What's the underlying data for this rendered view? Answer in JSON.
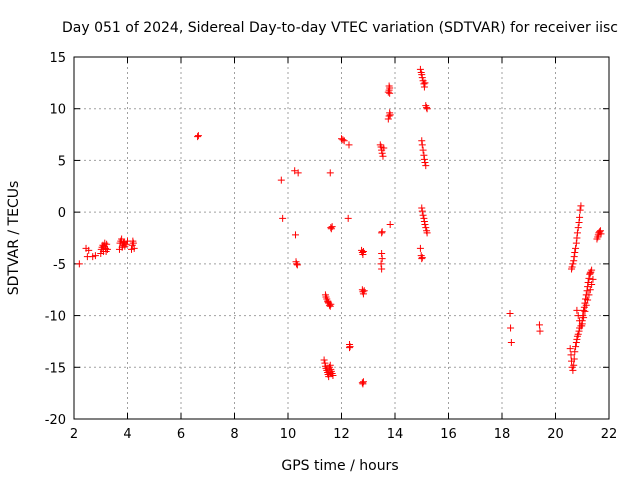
{
  "chart_data": {
    "type": "scatter",
    "title": "Day 051 of 2024, Sidereal Day-to-day VTEC variation (SDTVAR) for receiver iisc",
    "xlabel": "GPS time / hours",
    "ylabel": "SDTVAR / TECUs",
    "xlim": [
      2,
      22
    ],
    "ylim": [
      -20,
      15
    ],
    "xticks": [
      2,
      4,
      6,
      8,
      10,
      12,
      14,
      16,
      18,
      20,
      22
    ],
    "yticks": [
      -20,
      -15,
      -10,
      -5,
      0,
      5,
      10,
      15
    ],
    "xtick_labels": [
      "2",
      "4",
      "6",
      "8",
      "10",
      "12",
      "14",
      "16",
      "18",
      "20",
      "22"
    ],
    "ytick_labels": [
      "-20",
      "-15",
      "-10",
      "-5",
      "0",
      "5",
      "10",
      "15"
    ],
    "grid": true,
    "marker": "plus",
    "color": "#ff0000",
    "series": [
      {
        "name": "SDTVAR",
        "x": [
          2.2,
          2.45,
          2.5,
          2.55,
          2.7,
          2.8,
          3.0,
          3.02,
          3.05,
          3.08,
          3.1,
          3.12,
          3.15,
          3.18,
          3.2,
          3.22,
          3.25,
          3.7,
          3.72,
          3.75,
          3.78,
          3.8,
          3.82,
          3.85,
          3.88,
          3.9,
          3.95,
          4.0,
          4.15,
          4.18,
          4.2,
          4.22,
          4.25,
          6.62,
          6.65,
          9.75,
          9.8,
          10.25,
          10.28,
          10.3,
          10.32,
          10.35,
          10.38,
          11.35,
          11.38,
          11.4,
          11.42,
          11.45,
          11.48,
          11.5,
          11.52,
          11.55,
          11.58,
          11.6,
          11.62,
          11.65,
          11.68,
          11.4,
          11.42,
          11.45,
          11.48,
          11.5,
          11.52,
          11.55,
          11.58,
          11.6,
          11.6,
          11.62,
          11.65,
          11.58,
          12.0,
          12.05,
          12.1,
          12.25,
          12.28,
          12.3,
          12.3,
          12.32,
          12.75,
          12.78,
          12.8,
          12.82,
          12.78,
          12.8,
          12.82,
          12.85,
          12.78,
          12.8,
          12.82,
          13.45,
          13.48,
          13.5,
          13.52,
          13.55,
          13.58,
          13.5,
          13.5,
          13.52,
          13.48,
          13.5,
          13.52,
          13.75,
          13.78,
          13.8,
          13.82,
          13.75,
          13.78,
          13.8,
          13.78,
          13.8,
          13.82,
          14.95,
          14.98,
          15.0,
          15.02,
          15.05,
          15.08,
          15.1,
          15.12,
          15.15,
          15.18,
          15.2,
          15.0,
          15.02,
          15.05,
          15.08,
          15.1,
          15.12,
          15.15,
          15.0,
          15.02,
          15.05,
          15.08,
          15.1,
          15.12,
          15.15,
          15.18,
          15.2,
          14.95,
          14.98,
          15.0,
          15.02,
          18.3,
          18.32,
          18.35,
          19.4,
          19.42,
          20.55,
          20.58,
          20.6,
          20.62,
          20.65,
          20.68,
          20.7,
          20.72,
          20.75,
          20.78,
          20.8,
          20.82,
          20.85,
          20.88,
          20.9,
          20.6,
          20.62,
          20.65,
          20.68,
          20.7,
          20.72,
          20.75,
          20.78,
          20.8,
          20.82,
          20.85,
          20.88,
          20.9,
          20.92,
          20.95,
          20.98,
          21.0,
          21.02,
          21.05,
          21.08,
          21.1,
          21.12,
          21.15,
          21.18,
          21.2,
          21.22,
          21.25,
          21.28,
          21.3,
          21.32,
          21.35,
          20.8,
          20.85,
          20.9,
          20.95,
          21.0,
          21.05,
          21.1,
          21.15,
          21.2,
          21.25,
          21.3,
          21.35,
          21.4,
          21.55,
          21.58,
          21.6,
          21.62,
          21.65,
          21.68,
          21.7
        ],
        "y": [
          -5.0,
          -3.5,
          -4.3,
          -3.7,
          -4.3,
          -4.2,
          -4.0,
          -3.6,
          -3.4,
          -3.2,
          -3.8,
          -3.3,
          -3.0,
          -3.5,
          -3.8,
          -3.1,
          -3.6,
          -3.6,
          -3.0,
          -2.8,
          -2.6,
          -3.4,
          -3.2,
          -3.0,
          -2.9,
          -3.3,
          -3.1,
          -2.8,
          -3.6,
          -3.2,
          -2.8,
          -3.0,
          -3.5,
          7.3,
          7.4,
          3.1,
          -0.6,
          4.0,
          -2.2,
          -4.8,
          -5.0,
          -5.1,
          3.8,
          -14.3,
          -14.6,
          -14.9,
          -15.1,
          -15.3,
          -15.5,
          -15.7,
          -15.9,
          -15.0,
          -14.8,
          -15.2,
          -15.4,
          -15.6,
          -15.8,
          -8.0,
          -8.2,
          -8.4,
          -8.6,
          -8.7,
          -8.8,
          -9.0,
          -9.1,
          -8.9,
          -1.5,
          -1.6,
          -1.4,
          3.8,
          7.1,
          7.0,
          6.9,
          -0.6,
          6.5,
          -12.8,
          -13.1,
          -13.0,
          -3.7,
          -3.9,
          -4.1,
          -3.8,
          -7.5,
          -7.7,
          -7.9,
          -7.6,
          -16.5,
          -16.6,
          -16.4,
          6.5,
          6.3,
          6.0,
          5.7,
          5.4,
          6.2,
          -2.0,
          -4.0,
          -4.5,
          -5.0,
          -5.5,
          -1.9,
          9.0,
          9.3,
          9.6,
          9.4,
          11.6,
          11.8,
          12.0,
          12.2,
          11.5,
          -1.2,
          13.8,
          13.5,
          13.3,
          13.0,
          12.7,
          12.4,
          12.1,
          12.5,
          10.3,
          10.1,
          10.0,
          6.9,
          6.5,
          6.0,
          5.5,
          5.1,
          4.8,
          4.5,
          0.4,
          0.1,
          -0.3,
          -0.6,
          -0.9,
          -1.2,
          -1.5,
          -1.8,
          -2.0,
          -3.5,
          -4.2,
          -4.5,
          -4.4,
          -9.8,
          -11.2,
          -12.6,
          -10.9,
          -11.5,
          -13.2,
          -13.8,
          -14.4,
          -15.0,
          -15.3,
          -14.8,
          -14.2,
          -13.5,
          -13.0,
          -12.6,
          -12.3,
          -12.0,
          -11.8,
          -11.5,
          -11.2,
          -5.5,
          -5.3,
          -5.0,
          -4.7,
          -4.3,
          -3.9,
          -3.5,
          -3.0,
          -2.5,
          -2.0,
          -1.5,
          -1.0,
          -0.5,
          0.2,
          0.6,
          -11.0,
          -10.5,
          -10.0,
          -9.5,
          -9.2,
          -8.8,
          -8.4,
          -8.0,
          -7.6,
          -7.2,
          -6.8,
          -6.4,
          -6.0,
          -5.9,
          -5.8,
          -5.6,
          -9.5,
          -10.0,
          -10.5,
          -11.0,
          -10.8,
          -10.2,
          -9.6,
          -9.0,
          -8.5,
          -8.0,
          -7.5,
          -7.0,
          -6.5,
          -2.6,
          -2.4,
          -2.2,
          -2.0,
          -1.9,
          -1.8,
          -2.1
        ]
      }
    ]
  }
}
